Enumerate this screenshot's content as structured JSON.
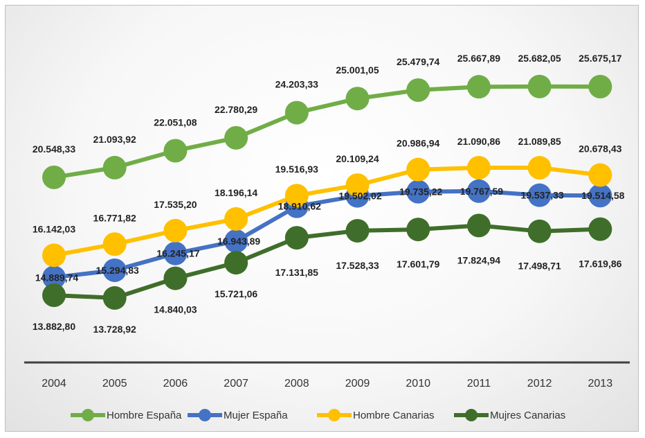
{
  "chart_data": {
    "type": "line",
    "title": "",
    "xlabel": "",
    "ylabel": "",
    "categories": [
      "2004",
      "2005",
      "2006",
      "2007",
      "2008",
      "2009",
      "2010",
      "2011",
      "2012",
      "2013"
    ],
    "ylim": [
      12000,
      27000
    ],
    "grid": false,
    "legend_position": "bottom",
    "series": [
      {
        "name": "Hombre España",
        "color": "#70ad47",
        "values": [
          20548.33,
          21093.92,
          22051.08,
          22780.29,
          24203.33,
          25001.05,
          25479.74,
          25667.89,
          25682.05,
          25675.17
        ],
        "labels": [
          "20.548,33",
          "21.093,92",
          "22.051,08",
          "22.780,29",
          "24.203,33",
          "25.001,05",
          "25.479,74",
          "25.667,89",
          "25.682,05",
          "25.675,17"
        ]
      },
      {
        "name": "Mujer España",
        "color": "#4472c4",
        "values": [
          14889.74,
          15294.83,
          16245.17,
          16943.89,
          18910.62,
          19502.02,
          19735.22,
          19767.59,
          19537.33,
          19514.58
        ],
        "labels": [
          "14.889,74",
          "15.294,83",
          "16.245,17",
          "16.943,89",
          "18.910,62",
          "19.502,02",
          "19.735,22",
          "19.767,59",
          "19.537,33",
          "19.514,58"
        ]
      },
      {
        "name": "Hombre Canarias",
        "color": "#ffc000",
        "values": [
          16142.03,
          16771.82,
          17535.2,
          18196.14,
          19516.93,
          20109.24,
          20986.94,
          21090.86,
          21089.85,
          20678.43
        ],
        "labels": [
          "16.142,03",
          "16.771,82",
          "17.535,20",
          "18.196,14",
          "19.516,93",
          "20.109,24",
          "20.986,94",
          "21.090,86",
          "21.089,85",
          "20.678,43"
        ]
      },
      {
        "name": "Mujres Canarias",
        "color": "#3f6e2a",
        "values": [
          13882.8,
          13728.92,
          14840.03,
          15721.06,
          17131.85,
          17528.33,
          17601.79,
          17824.94,
          17498.71,
          17619.86
        ],
        "labels": [
          "13.882,80",
          "13.728,92",
          "14.840,03",
          "15.721,06",
          "17.131,85",
          "17.528,33",
          "17.601,79",
          "17.824,94",
          "17.498,71",
          "17.619,86"
        ]
      }
    ]
  }
}
